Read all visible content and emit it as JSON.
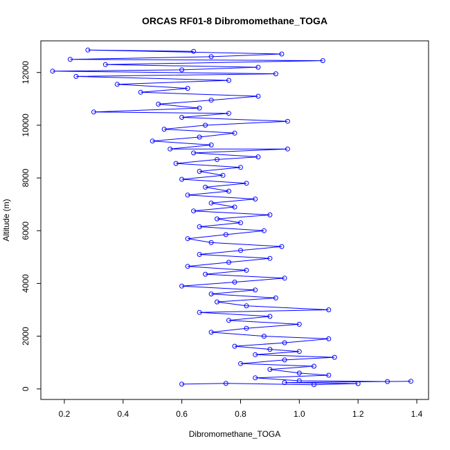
{
  "chart_data": {
    "type": "line",
    "title": "ORCAS RF01-8 Dibromomethane_TOGA",
    "xlabel": "Dibromomethane_TOGA",
    "ylabel": "Altitude (m)",
    "xlim": [
      0.12,
      1.44
    ],
    "ylim": [
      -400,
      13200
    ],
    "xticks": [
      0.2,
      0.4,
      0.6,
      0.8,
      1.0,
      1.2,
      1.4
    ],
    "xtick_labels": [
      "0.2",
      "0.4",
      "0.6",
      "0.8",
      "1.0",
      "1.2",
      "1.4"
    ],
    "yticks": [
      0,
      2000,
      4000,
      6000,
      8000,
      10000,
      12000
    ],
    "ytick_labels": [
      "0",
      "2000",
      "4000",
      "6000",
      "8000",
      "10000",
      "12000"
    ],
    "marker": "open-circle",
    "series": [
      {
        "name": "Dibromomethane_TOGA",
        "color": "#0000ff",
        "points": [
          [
            0.6,
            180
          ],
          [
            0.75,
            210
          ],
          [
            1.05,
            160
          ],
          [
            1.2,
            200
          ],
          [
            0.95,
            240
          ],
          [
            1.38,
            290
          ],
          [
            1.3,
            280
          ],
          [
            1.0,
            310
          ],
          [
            0.85,
            420
          ],
          [
            1.1,
            520
          ],
          [
            1.0,
            600
          ],
          [
            0.9,
            740
          ],
          [
            1.05,
            860
          ],
          [
            0.8,
            960
          ],
          [
            0.95,
            1100
          ],
          [
            1.12,
            1200
          ],
          [
            0.85,
            1300
          ],
          [
            1.0,
            1420
          ],
          [
            0.9,
            1500
          ],
          [
            0.78,
            1620
          ],
          [
            0.95,
            1750
          ],
          [
            1.1,
            1900
          ],
          [
            0.88,
            2000
          ],
          [
            0.7,
            2150
          ],
          [
            0.82,
            2300
          ],
          [
            1.0,
            2450
          ],
          [
            0.76,
            2600
          ],
          [
            0.9,
            2750
          ],
          [
            0.66,
            2900
          ],
          [
            1.1,
            3000
          ],
          [
            0.82,
            3150
          ],
          [
            0.72,
            3300
          ],
          [
            0.92,
            3450
          ],
          [
            0.7,
            3600
          ],
          [
            0.85,
            3750
          ],
          [
            0.6,
            3900
          ],
          [
            0.78,
            4050
          ],
          [
            0.95,
            4200
          ],
          [
            0.68,
            4350
          ],
          [
            0.82,
            4500
          ],
          [
            0.62,
            4650
          ],
          [
            0.76,
            4800
          ],
          [
            0.9,
            4950
          ],
          [
            0.66,
            5100
          ],
          [
            0.8,
            5250
          ],
          [
            0.94,
            5400
          ],
          [
            0.7,
            5550
          ],
          [
            0.62,
            5700
          ],
          [
            0.75,
            5850
          ],
          [
            0.88,
            6000
          ],
          [
            0.66,
            6150
          ],
          [
            0.8,
            6300
          ],
          [
            0.72,
            6450
          ],
          [
            0.9,
            6600
          ],
          [
            0.64,
            6750
          ],
          [
            0.78,
            6900
          ],
          [
            0.7,
            7050
          ],
          [
            0.85,
            7200
          ],
          [
            0.62,
            7350
          ],
          [
            0.76,
            7500
          ],
          [
            0.68,
            7650
          ],
          [
            0.82,
            7800
          ],
          [
            0.6,
            7950
          ],
          [
            0.74,
            8100
          ],
          [
            0.66,
            8250
          ],
          [
            0.8,
            8400
          ],
          [
            0.58,
            8550
          ],
          [
            0.72,
            8700
          ],
          [
            0.86,
            8800
          ],
          [
            0.64,
            8950
          ],
          [
            0.96,
            9100
          ],
          [
            0.56,
            9100
          ],
          [
            0.7,
            9250
          ],
          [
            0.5,
            9400
          ],
          [
            0.66,
            9550
          ],
          [
            0.78,
            9700
          ],
          [
            0.54,
            9850
          ],
          [
            0.68,
            10000
          ],
          [
            0.96,
            10150
          ],
          [
            0.6,
            10300
          ],
          [
            0.76,
            10450
          ],
          [
            0.3,
            10500
          ],
          [
            0.66,
            10650
          ],
          [
            0.52,
            10800
          ],
          [
            0.7,
            10950
          ],
          [
            0.86,
            11100
          ],
          [
            0.46,
            11250
          ],
          [
            0.62,
            11400
          ],
          [
            0.38,
            11550
          ],
          [
            0.76,
            11700
          ],
          [
            0.24,
            11850
          ],
          [
            0.92,
            11950
          ],
          [
            0.16,
            12050
          ],
          [
            0.6,
            12100
          ],
          [
            0.86,
            12200
          ],
          [
            0.34,
            12300
          ],
          [
            1.08,
            12450
          ],
          [
            0.22,
            12500
          ],
          [
            0.7,
            12600
          ],
          [
            0.94,
            12700
          ],
          [
            0.28,
            12850
          ],
          [
            0.64,
            12800
          ]
        ]
      }
    ]
  }
}
